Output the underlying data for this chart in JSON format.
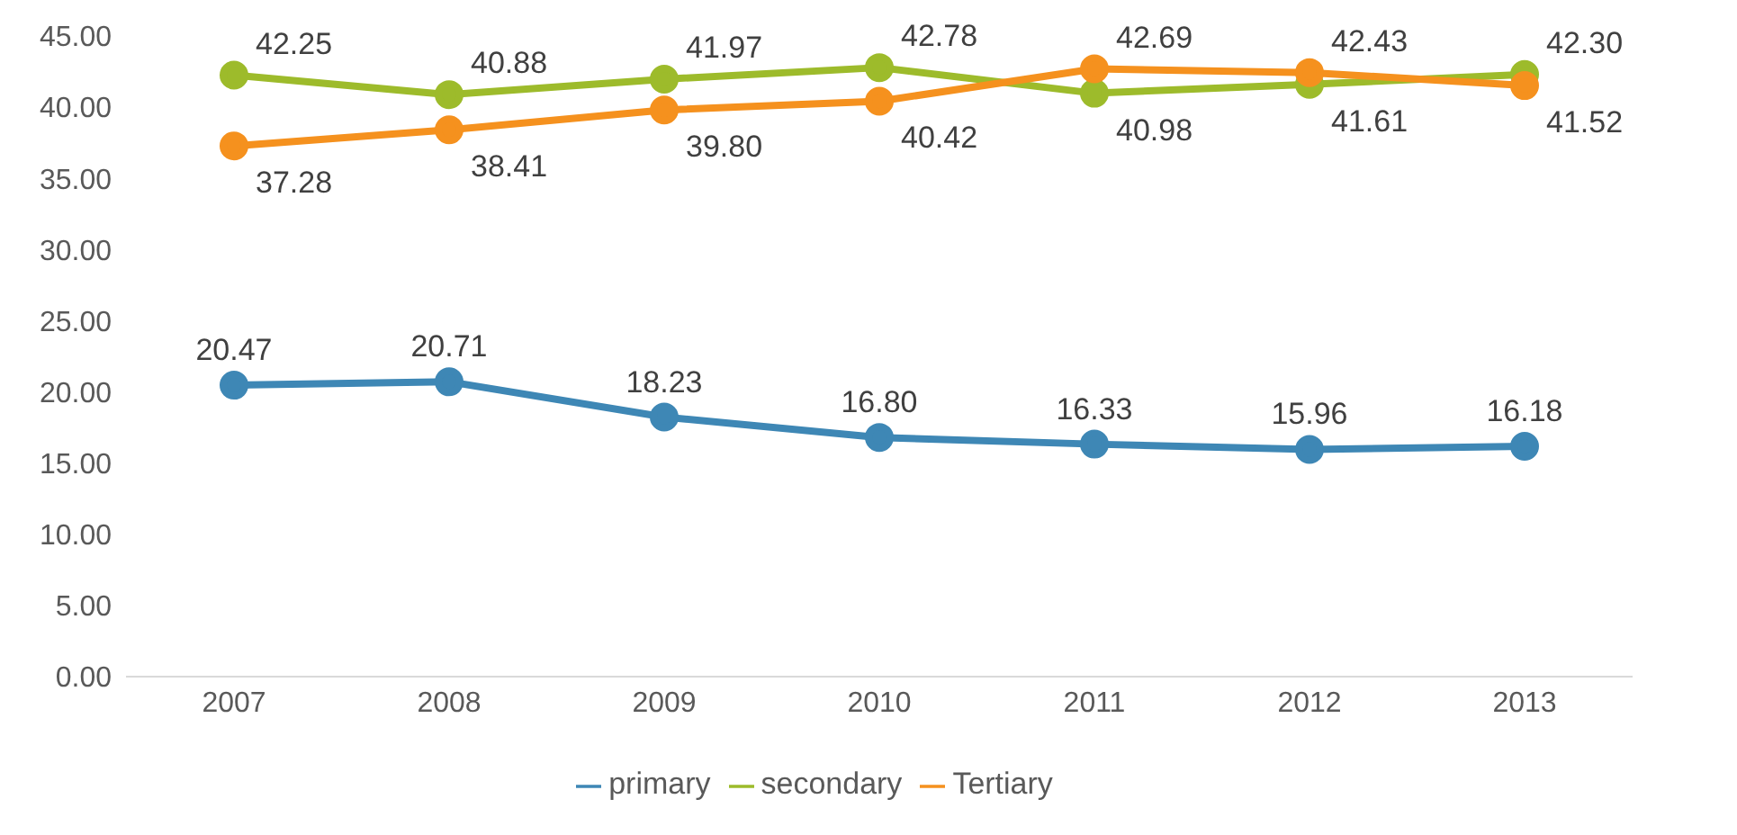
{
  "chart_data": {
    "type": "line",
    "categories": [
      "2007",
      "2008",
      "2009",
      "2010",
      "2011",
      "2012",
      "2013"
    ],
    "series": [
      {
        "name": "primary",
        "color": "#3e87b5",
        "values": [
          20.47,
          20.71,
          18.23,
          16.8,
          16.33,
          15.96,
          16.18
        ],
        "value_labels": [
          "20.47",
          "20.71",
          "18.23",
          "16.80",
          "16.33",
          "15.96",
          "16.18"
        ]
      },
      {
        "name": "secondary",
        "color": "#9dbb2b",
        "values": [
          42.25,
          40.88,
          41.97,
          42.78,
          40.98,
          41.61,
          42.3
        ],
        "value_labels": [
          "42.25",
          "40.88",
          "41.97",
          "42.78",
          "40.98",
          "41.61",
          "42.30"
        ]
      },
      {
        "name": "Tertiary",
        "color": "#f5911e",
        "values": [
          37.28,
          38.41,
          39.8,
          40.42,
          42.69,
          42.43,
          41.52
        ],
        "value_labels": [
          "37.28",
          "38.41",
          "39.80",
          "40.42",
          "42.69",
          "42.43",
          "41.52"
        ]
      }
    ],
    "ylim": [
      0,
      45
    ],
    "yticks": [
      {
        "value": 0,
        "label": "0.00"
      },
      {
        "value": 5,
        "label": "5.00"
      },
      {
        "value": 10,
        "label": "10.00"
      },
      {
        "value": 15,
        "label": "15.00"
      },
      {
        "value": 20,
        "label": "20.00"
      },
      {
        "value": 25,
        "label": "25.00"
      },
      {
        "value": 30,
        "label": "30.00"
      },
      {
        "value": 35,
        "label": "35.00"
      },
      {
        "value": 40,
        "label": "40.00"
      },
      {
        "value": 45,
        "label": "45.00"
      }
    ],
    "legend": "bottom",
    "marker": "circle",
    "line_style": "solid"
  }
}
